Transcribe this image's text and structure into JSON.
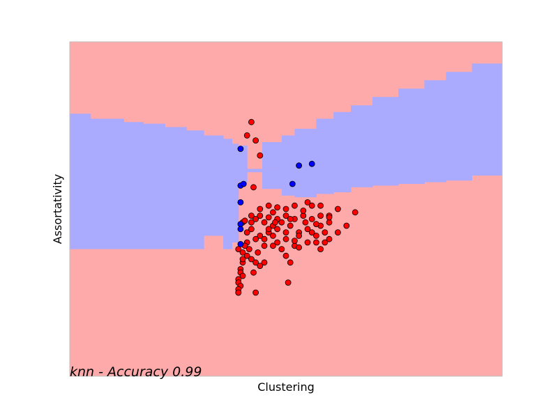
{
  "chart_data": {
    "type": "scatter",
    "title": "",
    "xlabel": "Clustering",
    "ylabel": "Assortativity",
    "annotation": "knn - Accuracy 0.99",
    "xlim": [
      0,
      1
    ],
    "ylim": [
      0,
      1
    ],
    "ticks_visible": false,
    "grid": false,
    "legend": "none",
    "background": {
      "type": "decision_regions",
      "class_colors": {
        "class_a": "#ffaaaa",
        "class_b": "#aaaaff"
      },
      "default_class": "class_a",
      "class_b_region_columns": [
        {
          "x": [
            0.0,
            0.048
          ],
          "y_ranges": [
            [
              0.38,
              0.785
            ]
          ]
        },
        {
          "x": [
            0.048,
            0.125
          ],
          "y_ranges": [
            [
              0.38,
              0.77
            ]
          ]
        },
        {
          "x": [
            0.125,
            0.17
          ],
          "y_ranges": [
            [
              0.38,
              0.76
            ]
          ]
        },
        {
          "x": [
            0.17,
            0.22
          ],
          "y_ranges": [
            [
              0.38,
              0.755
            ]
          ]
        },
        {
          "x": [
            0.22,
            0.27
          ],
          "y_ranges": [
            [
              0.38,
              0.745
            ]
          ]
        },
        {
          "x": [
            0.27,
            0.31
          ],
          "y_ranges": [
            [
              0.38,
              0.735
            ]
          ]
        },
        {
          "x": [
            0.31,
            0.355
          ],
          "y_ranges": [
            [
              0.42,
              0.72
            ]
          ]
        },
        {
          "x": [
            0.355,
            0.375
          ],
          "y_ranges": [
            [
              0.38,
              0.71
            ]
          ]
        },
        {
          "x": [
            0.375,
            0.39
          ],
          "y_ranges": [
            [
              0.4,
              0.63
            ],
            [
              0.63,
              0.695
            ]
          ]
        },
        {
          "x": [
            0.39,
            0.41
          ],
          "y_ranges": [
            [
              0.58,
              0.69
            ]
          ]
        },
        {
          "x": [
            0.41,
            0.445
          ],
          "y_ranges": [
            [
              0.61,
              0.62
            ]
          ]
        },
        {
          "x": [
            0.445,
            0.49
          ],
          "y_ranges": [
            [
              0.56,
              0.62
            ],
            [
              0.62,
              0.7
            ]
          ]
        },
        {
          "x": [
            0.49,
            0.52
          ],
          "y_ranges": [
            [
              0.54,
              0.72
            ]
          ]
        },
        {
          "x": [
            0.52,
            0.57
          ],
          "y_ranges": [
            [
              0.535,
              0.74
            ]
          ]
        },
        {
          "x": [
            0.57,
            0.61
          ],
          "y_ranges": [
            [
              0.545,
              0.77
            ]
          ]
        },
        {
          "x": [
            0.61,
            0.65
          ],
          "y_ranges": [
            [
              0.55,
              0.79
            ]
          ]
        },
        {
          "x": [
            0.65,
            0.7
          ],
          "y_ranges": [
            [
              0.565,
              0.81
            ]
          ]
        },
        {
          "x": [
            0.7,
            0.76
          ],
          "y_ranges": [
            [
              0.57,
              0.835
            ]
          ]
        },
        {
          "x": [
            0.76,
            0.82
          ],
          "y_ranges": [
            [
              0.575,
              0.86
            ]
          ]
        },
        {
          "x": [
            0.82,
            0.87
          ],
          "y_ranges": [
            [
              0.58,
              0.885
            ]
          ]
        },
        {
          "x": [
            0.87,
            0.93
          ],
          "y_ranges": [
            [
              0.585,
              0.91
            ]
          ]
        },
        {
          "x": [
            0.93,
            1.0
          ],
          "y_ranges": [
            [
              0.6,
              0.935
            ]
          ]
        }
      ]
    },
    "series": [
      {
        "color": "#ff0000",
        "points": [
          [
            0.42,
            0.76
          ],
          [
            0.41,
            0.72
          ],
          [
            0.43,
            0.705
          ],
          [
            0.44,
            0.66
          ],
          [
            0.425,
            0.565
          ],
          [
            0.4,
            0.46
          ],
          [
            0.405,
            0.465
          ],
          [
            0.41,
            0.43
          ],
          [
            0.42,
            0.46
          ],
          [
            0.43,
            0.47
          ],
          [
            0.44,
            0.48
          ],
          [
            0.45,
            0.46
          ],
          [
            0.46,
            0.475
          ],
          [
            0.47,
            0.49
          ],
          [
            0.48,
            0.47
          ],
          [
            0.49,
            0.46
          ],
          [
            0.5,
            0.48
          ],
          [
            0.51,
            0.45
          ],
          [
            0.52,
            0.47
          ],
          [
            0.53,
            0.43
          ],
          [
            0.54,
            0.48
          ],
          [
            0.55,
            0.44
          ],
          [
            0.56,
            0.47
          ],
          [
            0.57,
            0.42
          ],
          [
            0.58,
            0.45
          ],
          [
            0.59,
            0.43
          ],
          [
            0.6,
            0.46
          ],
          [
            0.62,
            0.5
          ],
          [
            0.64,
            0.45
          ],
          [
            0.66,
            0.49
          ],
          [
            0.55,
            0.52
          ],
          [
            0.56,
            0.51
          ],
          [
            0.58,
            0.51
          ],
          [
            0.6,
            0.48
          ],
          [
            0.54,
            0.495
          ],
          [
            0.52,
            0.51
          ],
          [
            0.5,
            0.5
          ],
          [
            0.48,
            0.505
          ],
          [
            0.46,
            0.51
          ],
          [
            0.44,
            0.5
          ],
          [
            0.42,
            0.48
          ],
          [
            0.42,
            0.44
          ],
          [
            0.43,
            0.41
          ],
          [
            0.44,
            0.42
          ],
          [
            0.46,
            0.43
          ],
          [
            0.47,
            0.42
          ],
          [
            0.48,
            0.4
          ],
          [
            0.5,
            0.41
          ],
          [
            0.52,
            0.39
          ],
          [
            0.53,
            0.385
          ],
          [
            0.55,
            0.4
          ],
          [
            0.57,
            0.4
          ],
          [
            0.58,
            0.38
          ],
          [
            0.59,
            0.4
          ],
          [
            0.6,
            0.41
          ],
          [
            0.62,
            0.43
          ],
          [
            0.39,
            0.38
          ],
          [
            0.4,
            0.37
          ],
          [
            0.41,
            0.36
          ],
          [
            0.42,
            0.35
          ],
          [
            0.43,
            0.34
          ],
          [
            0.44,
            0.33
          ],
          [
            0.45,
            0.34
          ],
          [
            0.4,
            0.34
          ],
          [
            0.395,
            0.32
          ],
          [
            0.395,
            0.31
          ],
          [
            0.4,
            0.3
          ],
          [
            0.39,
            0.29
          ],
          [
            0.39,
            0.28
          ],
          [
            0.395,
            0.27
          ],
          [
            0.39,
            0.26
          ],
          [
            0.39,
            0.25
          ],
          [
            0.39,
            0.25
          ],
          [
            0.425,
            0.31
          ],
          [
            0.41,
            0.4
          ],
          [
            0.405,
            0.39
          ],
          [
            0.4,
            0.35
          ],
          [
            0.45,
            0.39
          ],
          [
            0.47,
            0.39
          ],
          [
            0.49,
            0.38
          ],
          [
            0.5,
            0.36
          ],
          [
            0.51,
            0.34
          ],
          [
            0.505,
            0.28
          ],
          [
            0.43,
            0.25
          ],
          [
            0.52,
            0.405
          ],
          [
            0.46,
            0.44
          ],
          [
            0.48,
            0.44
          ],
          [
            0.5,
            0.43
          ],
          [
            0.51,
            0.47
          ],
          [
            0.47,
            0.45
          ],
          [
            0.45,
            0.41
          ],
          [
            0.435,
            0.37
          ],
          [
            0.415,
            0.38
          ],
          [
            0.53,
            0.42
          ],
          [
            0.56,
            0.43
          ],
          [
            0.57,
            0.455
          ],
          [
            0.58,
            0.48
          ],
          [
            0.6,
            0.475
          ],
          [
            0.545,
            0.46
          ],
          [
            0.475,
            0.46
          ]
        ]
      },
      {
        "color": "#0000ff",
        "points": [
          [
            0.395,
            0.68
          ],
          [
            0.395,
            0.57
          ],
          [
            0.402,
            0.575
          ],
          [
            0.395,
            0.52
          ],
          [
            0.395,
            0.455
          ],
          [
            0.395,
            0.44
          ],
          [
            0.395,
            0.395
          ],
          [
            0.53,
            0.63
          ],
          [
            0.56,
            0.635
          ],
          [
            0.515,
            0.575
          ]
        ]
      }
    ]
  }
}
